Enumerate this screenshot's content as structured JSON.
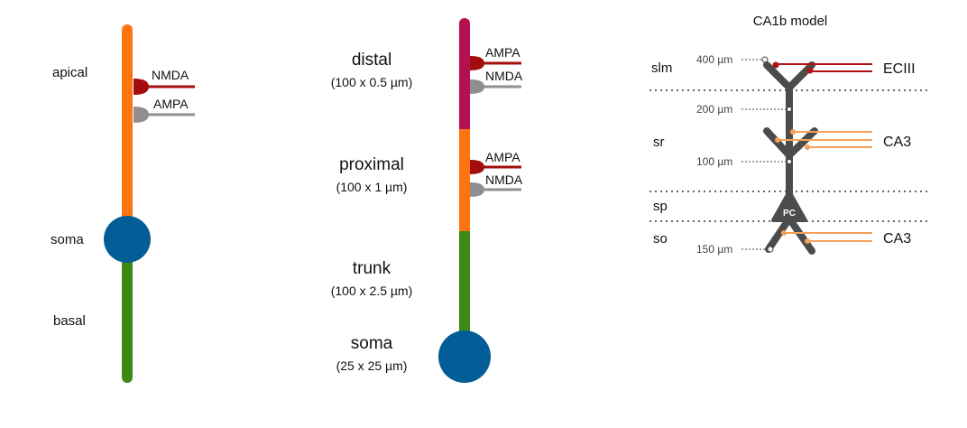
{
  "colors": {
    "dendrite_orange": "#ff7410",
    "basal_green": "#3b8a15",
    "soma_blue": "#035d96",
    "distal_magenta": "#b5104f",
    "nmda_darkred": "#a30d0d",
    "ampa_gray": "#8f8f8f",
    "model_gray": "#4c4c4c",
    "ca3_light_orange": "#f6a059",
    "eciii_red": "#b01313"
  },
  "panel_a": {
    "apical_label": "apical",
    "soma_label": "soma",
    "basal_label": "basal",
    "nmda_label": "NMDA",
    "ampa_label": "AMPA"
  },
  "panel_b": {
    "distal": {
      "name": "distal",
      "dims": "(100 x 0.5 µm)"
    },
    "proximal": {
      "name": "proximal",
      "dims": "(100 x 1 µm)"
    },
    "trunk": {
      "name": "trunk",
      "dims": "(100 x 2.5 µm)"
    },
    "soma": {
      "name": "soma",
      "dims": "(25 x 25 µm)"
    },
    "distal_synapses": {
      "ampa": "AMPA",
      "nmda": "NMDA"
    },
    "proximal_synapses": {
      "ampa": "AMPA",
      "nmda": "NMDA"
    }
  },
  "panel_c": {
    "title": "CA1b model",
    "layers": {
      "slm": "slm",
      "sr": "sr",
      "sp": "sp",
      "so": "so"
    },
    "distances": {
      "d400": "400 µm",
      "d200": "200 µm",
      "d100": "100 µm",
      "d150": "150 µm"
    },
    "inputs": {
      "eciii": "ECIII",
      "ca3_sr": "CA3",
      "ca3_so": "CA3"
    },
    "cell_label": "PC"
  }
}
